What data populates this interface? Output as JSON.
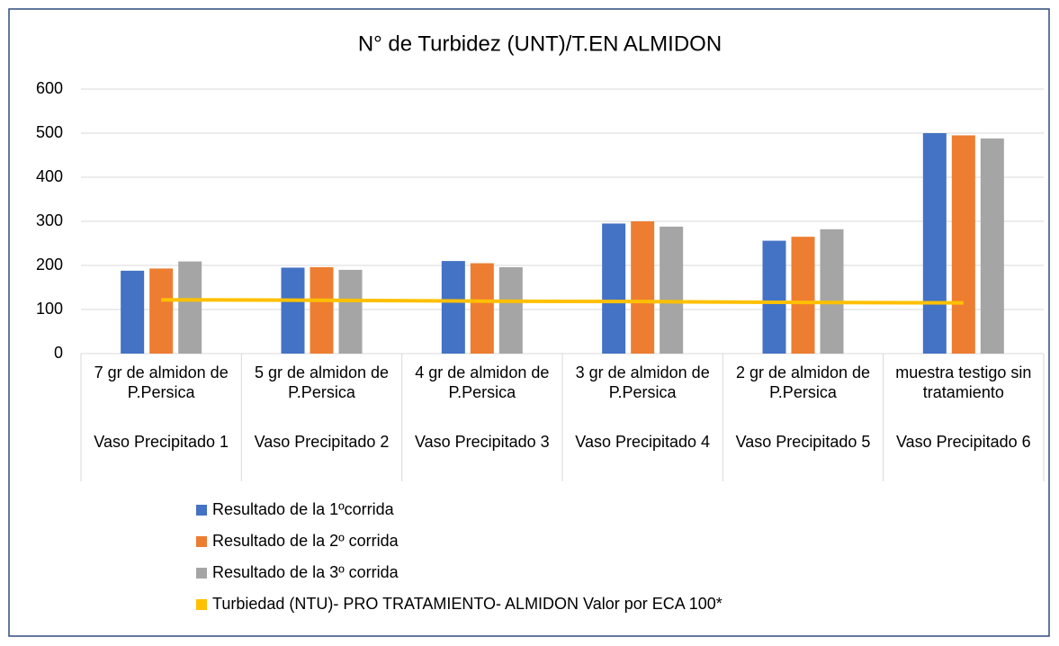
{
  "chart_data": {
    "type": "bar",
    "title": "N° de Turbidez (UNT)/T.EN ALMIDON",
    "categories": [
      "7 gr de almidon de P.Persica",
      "5 gr de almidon de P.Persica",
      "4 gr de almidon de P.Persica",
      "3 gr de almidon de P.Persica",
      "2 gr de almidon de P.Persica",
      "muestra testigo sin tratamiento"
    ],
    "groups": [
      "Vaso Precipitado 1",
      "Vaso Precipitado 2",
      "Vaso Precipitado 3",
      "Vaso Precipitado 4",
      "Vaso Precipitado 5",
      "Vaso Precipitado 6"
    ],
    "series": [
      {
        "name": "Resultado de la 1ºcorrida",
        "color": "#4472c4",
        "values": [
          188,
          195,
          210,
          295,
          256,
          500
        ]
      },
      {
        "name": "Resultado de la 2º corrida",
        "color": "#ed7d31",
        "values": [
          193,
          196,
          205,
          300,
          265,
          495
        ]
      },
      {
        "name": "Resultado de la 3º corrida",
        "color": "#a5a5a5",
        "values": [
          209,
          190,
          196,
          288,
          282,
          488
        ]
      },
      {
        "name": "Turbiedad  (NTU)- PRO TRATAMIENTO- ALMIDON Valor por ECA 100*",
        "color": "#ffc000",
        "type": "line",
        "values": [
          122,
          121,
          119,
          118,
          116,
          115
        ]
      }
    ],
    "ylim": [
      0,
      600
    ],
    "yticks": [
      0,
      100,
      200,
      300,
      400,
      500,
      600
    ],
    "grid": true,
    "legend": "bottom"
  }
}
